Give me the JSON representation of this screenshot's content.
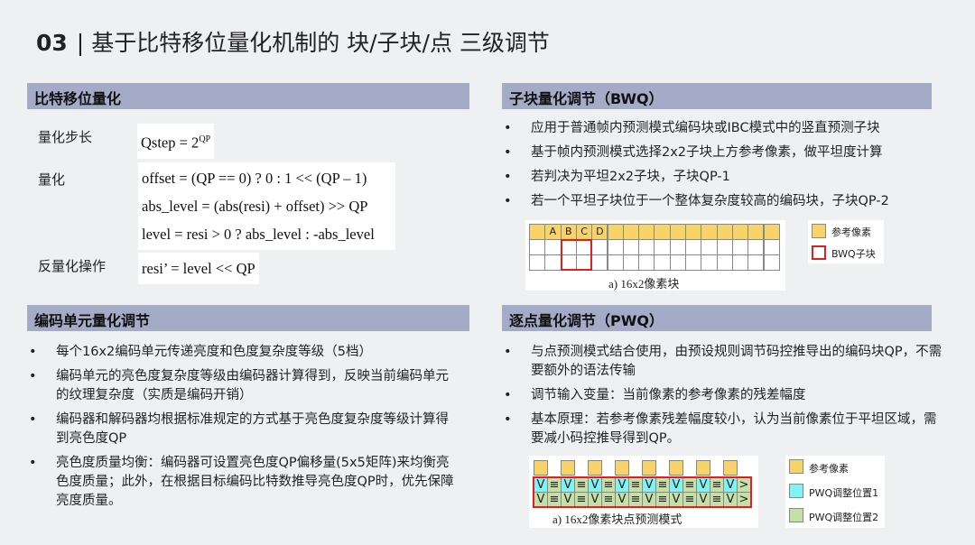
{
  "title": {
    "number": "03",
    "separator": "|",
    "text": "基于比特移位量化机制的 块/子块/点 三级调节"
  },
  "bitshift": {
    "header": "比特移位量化",
    "rows": [
      {
        "label": "量化步长",
        "formula": "Qstep = 2",
        "sup": "QP"
      },
      {
        "label": "量化",
        "lines": [
          "offset = (QP == 0) ? 0 : 1 << (QP – 1)",
          "abs_level = (abs(resi) + offset) >> QP",
          "level = resi > 0 ? abs_level : -abs_level"
        ]
      },
      {
        "label": "反量化操作",
        "formula": "resi’ = level << QP"
      }
    ]
  },
  "cu": {
    "header": "编码单元量化调节",
    "bullets": [
      "每个16x2编码单元传递亮度和色度复杂度等级（5档）",
      "编码单元的亮色度复杂度等级由编码器计算得到，反映当前编码单元的纹理复杂度（实质是编码开销）",
      "编码器和解码器均根据标准规定的方式基于亮色度复杂度等级计算得到亮色度QP",
      "亮色度质量均衡：编码器可设置亮色度QP偏移量(5x5矩阵)来均衡亮色度质量；此外，在根据目标编码比特数推导亮色度QP时，优先保障亮度质量。"
    ]
  },
  "bwq": {
    "header": "子块量化调节（BWQ）",
    "bullets": [
      "应用于普通帧内预测模式编码块或IBC模式中的竖直预测子块",
      "基于帧内预测模式选择2x2子块上方参考像素，做平坦度计算",
      "若判决为平坦2x2子块，子块QP-1",
      "若一个平坦子块位于一个整体复杂度较高的编码块，子块QP-2"
    ],
    "figure": {
      "ref_labels": [
        "",
        "A",
        "B",
        "C",
        "D"
      ],
      "caption": "a) 16x2像素块",
      "legend": [
        "参考像素",
        "BWQ子块"
      ]
    }
  },
  "pwq": {
    "header": "逐点量化调节（PWQ）",
    "bullets": [
      "与点预测模式结合使用，由预设规则调节码控推导出的编码块QP，不需要额外的语法传输",
      "调节输入变量：当前像素的参考像素的残差幅度",
      "基本原理：若参考像素残差幅度较小，认为当前像素位于平坦区域，需要减小码控推导得到QP。"
    ],
    "figure": {
      "symbols": [
        "V",
        "≡",
        ">"
      ],
      "caption": "a) 16x2像素块点预测模式",
      "legend": [
        "参考像素",
        "PWQ调整位置1",
        "PWQ调整位置2"
      ]
    }
  },
  "colors": {
    "header_bar": "#a4abc6",
    "ref_pixel": "#f8d36a",
    "bwq_border": "#e02020",
    "pwq_pos1": "#7ff3f3",
    "pwq_pos2": "#c5dfa8"
  }
}
